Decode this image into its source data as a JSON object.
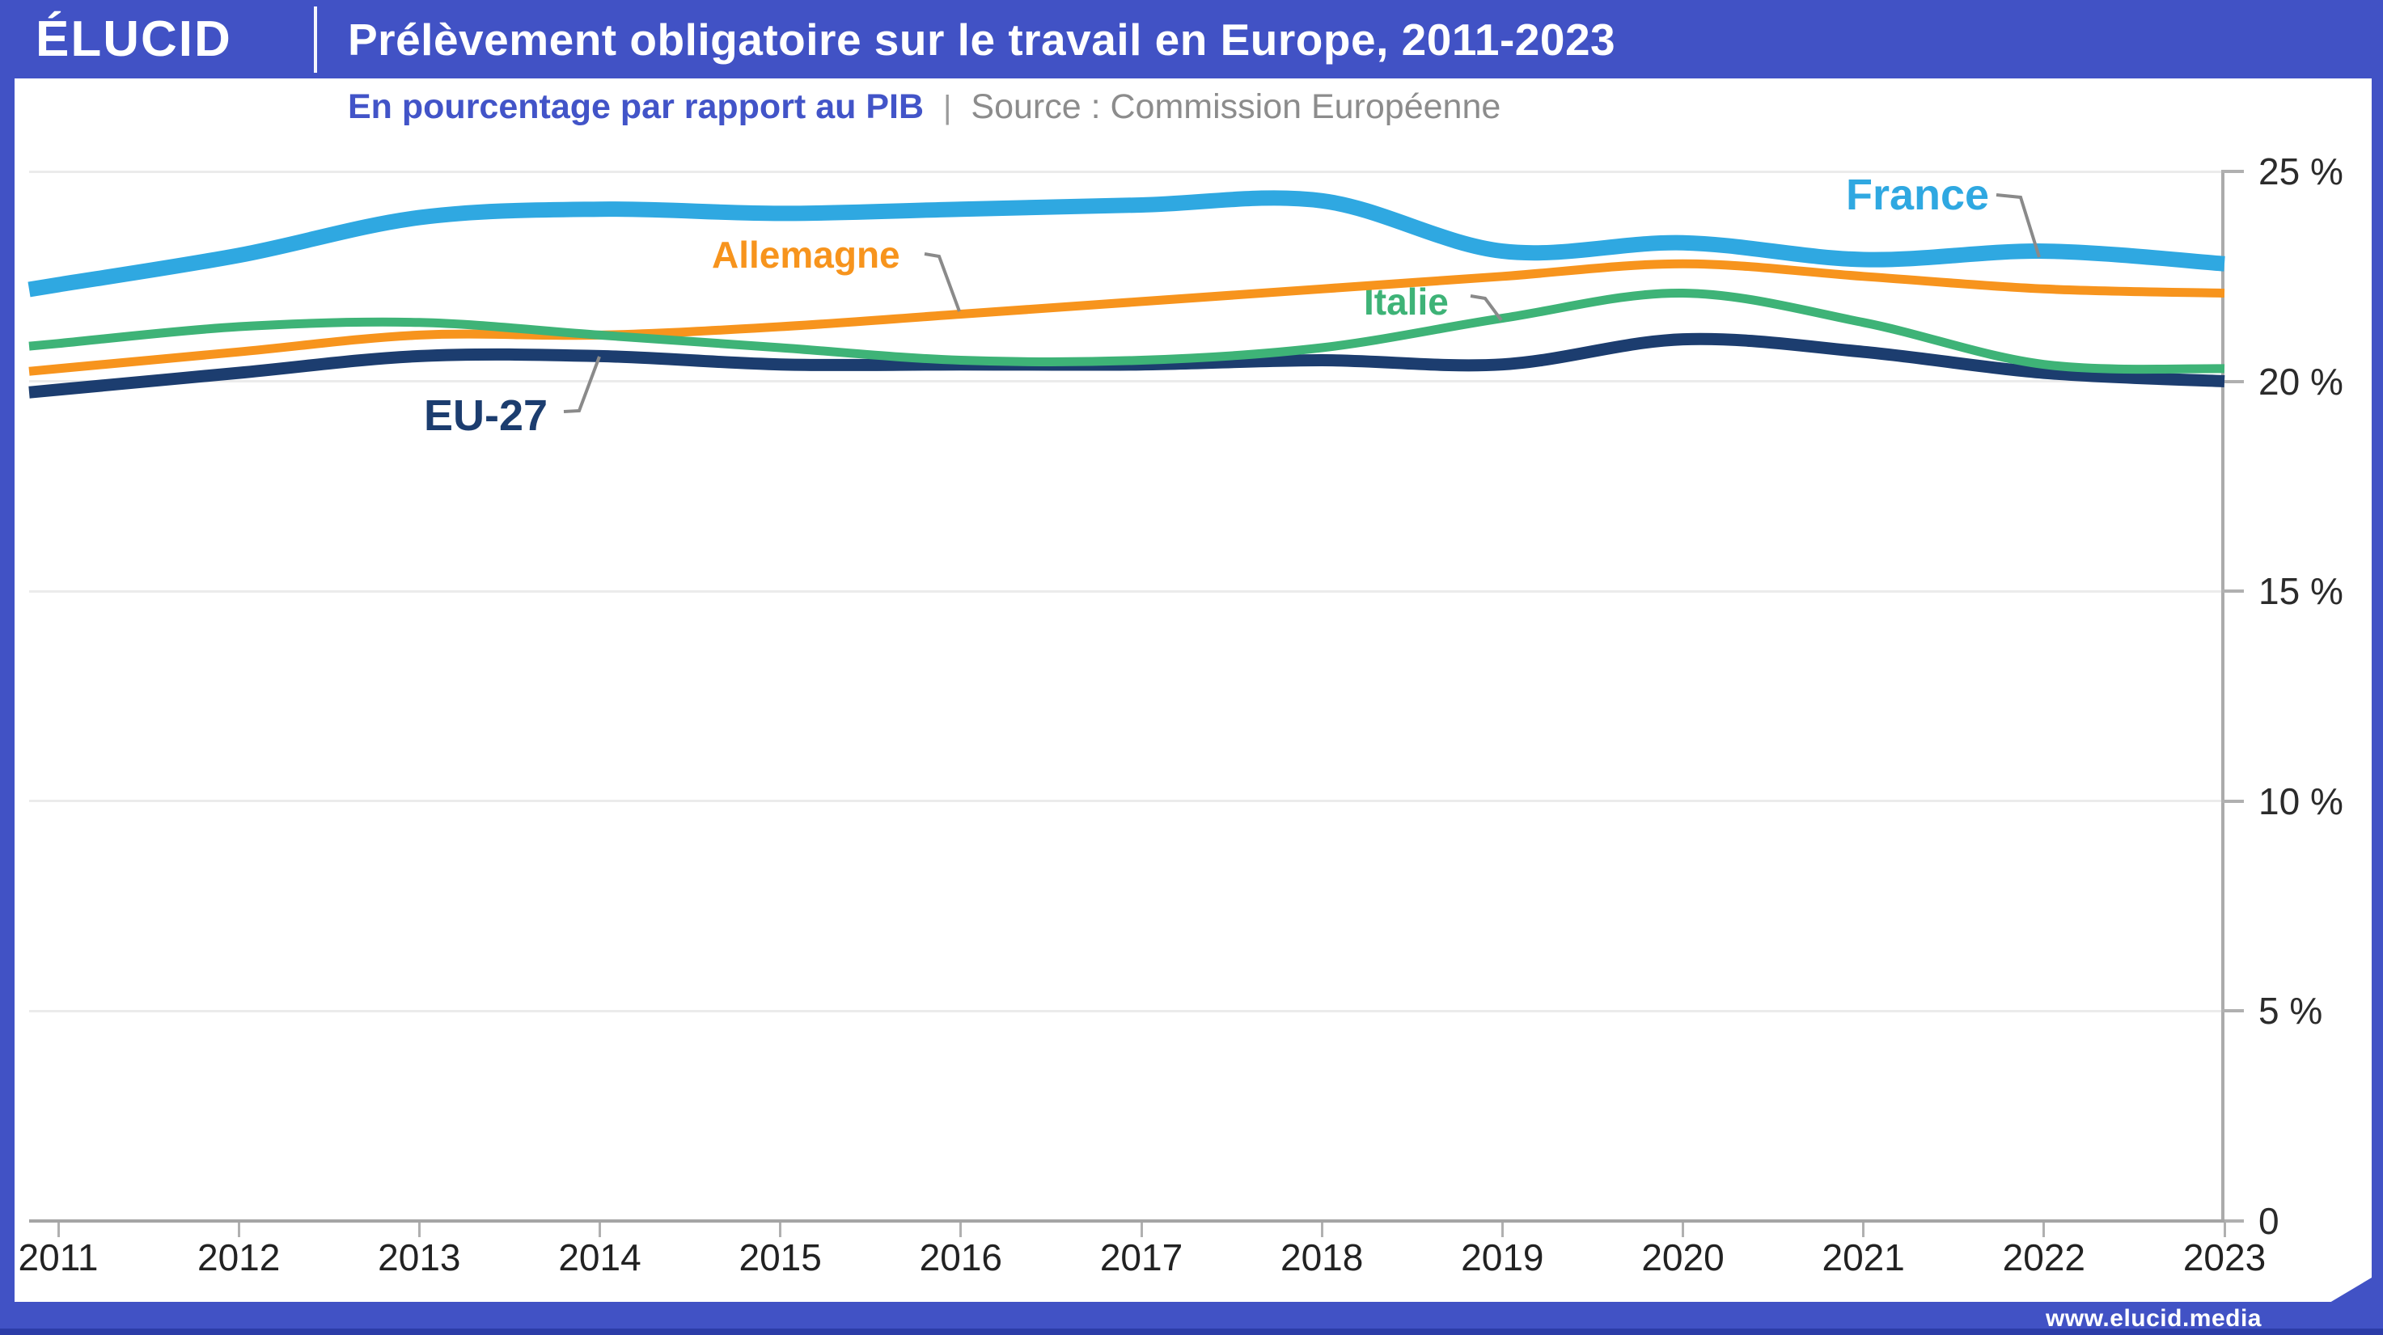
{
  "header": {
    "logo_text": "ÉLUCID",
    "title": "Prélèvement obligatoire sur le travail en Europe, 2011-2023"
  },
  "subtitle": {
    "description": "En pourcentage par rapport au PIB",
    "separator": "|",
    "source": "Source : Commission Européenne"
  },
  "footer": {
    "website": "www.elucid.media"
  },
  "colors": {
    "brand_blue": "#4152C5",
    "subtitle_blue": "#4254C8",
    "source_gray": "#8C8C8C",
    "france": "#2FA8E1",
    "allemagne": "#F7941D",
    "italie": "#3EB377",
    "eu27": "#1C3D6F",
    "callout_gray": "#8a8a8a"
  },
  "chart_data": {
    "type": "line",
    "title": "Prélèvement obligatoire sur le travail en Europe, 2011-2023",
    "subtitle": "En pourcentage par rapport au PIB",
    "source": "Source : Commission Européenne",
    "unit": "% du PIB",
    "categories": [
      "2011",
      "2012",
      "2013",
      "2014",
      "2015",
      "2016",
      "2017",
      "2018",
      "2019",
      "2020",
      "2021",
      "2022",
      "2023"
    ],
    "series": [
      {
        "name": "France",
        "color": "#2FA8E1",
        "stroke_width": 19,
        "values": [
          22.3,
          23.0,
          23.9,
          24.1,
          24.0,
          24.1,
          24.2,
          24.3,
          23.1,
          23.3,
          22.9,
          23.1,
          22.8
        ]
      },
      {
        "name": "Allemagne",
        "color": "#F7941D",
        "stroke_width": 11,
        "values": [
          20.3,
          20.7,
          21.1,
          21.1,
          21.3,
          21.6,
          21.9,
          22.2,
          22.5,
          22.8,
          22.5,
          22.2,
          22.1
        ]
      },
      {
        "name": "Italie",
        "color": "#3EB377",
        "stroke_width": 11,
        "values": [
          20.9,
          21.3,
          21.4,
          21.1,
          20.8,
          20.5,
          20.5,
          20.8,
          21.5,
          22.1,
          21.4,
          20.4,
          20.3
        ]
      },
      {
        "name": "EU-27",
        "color": "#1C3D6F",
        "stroke_width": 15,
        "values": [
          19.8,
          20.2,
          20.6,
          20.6,
          20.4,
          20.4,
          20.4,
          20.5,
          20.4,
          21.0,
          20.7,
          20.2,
          20.0
        ]
      }
    ],
    "ylim": [
      0,
      25
    ],
    "y_ticks": [
      25,
      20,
      15,
      10,
      5,
      0
    ],
    "y_tick_labels": [
      "25 %",
      "20 %",
      "15 %",
      "10 %",
      "5 %",
      "0"
    ],
    "grid": "horizontal",
    "legend": "inline-labels"
  }
}
